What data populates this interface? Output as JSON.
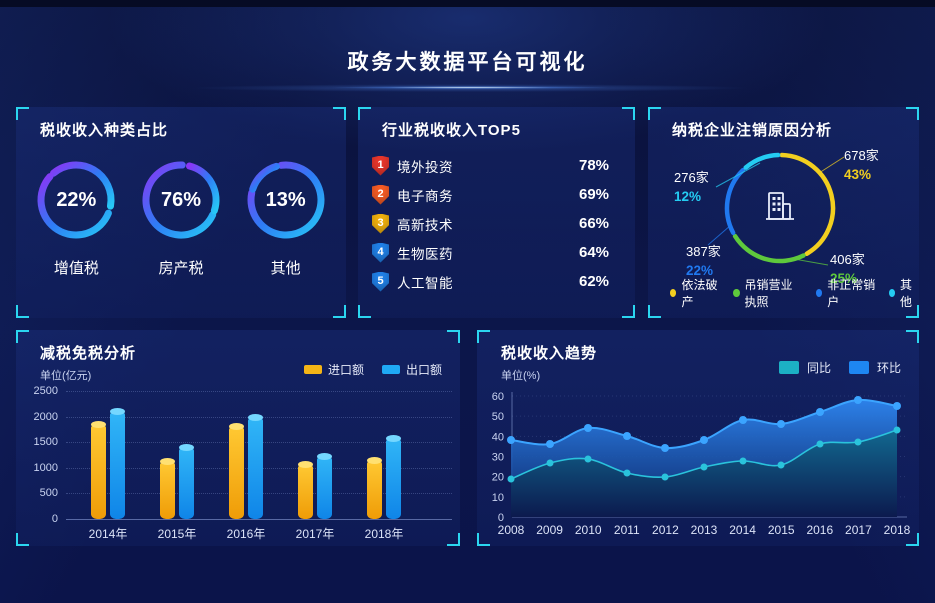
{
  "header": {
    "title": "政务大数据平台可视化"
  },
  "colors": {
    "background": "#0b1340",
    "panel": "#11205c",
    "corner_accent": "#2bd6f0",
    "axis_text": "#c9d3f0"
  },
  "chart_data": [
    {
      "id": "tax_type_rings",
      "type": "pie",
      "title": "税收收入种类占比",
      "ring_colors": [
        "#8a36f5",
        "#2f7bf5",
        "#27c8f6"
      ],
      "items": [
        {
          "label": "增值税",
          "pct": "22%",
          "value": 22
        },
        {
          "label": "房产税",
          "pct": "76%",
          "value": 76
        },
        {
          "label": "其他",
          "pct": "13%",
          "value": 13
        }
      ]
    },
    {
      "id": "industry_top5",
      "type": "bar",
      "title": "行业税收收入TOP5",
      "bar_color_start": "#2b50d8",
      "bar_color_end": "#4f9cf7",
      "max_value": 78,
      "items": [
        {
          "rank": "1",
          "label": "境外投资",
          "pct": "78%",
          "value": 78,
          "badge_color": "#e8362c"
        },
        {
          "rank": "2",
          "label": "电子商务",
          "pct": "69%",
          "value": 69,
          "badge_color": "#f55b25"
        },
        {
          "rank": "3",
          "label": "高新技术",
          "pct": "66%",
          "value": 66,
          "badge_color": "#f0b10e"
        },
        {
          "rank": "4",
          "label": "生物医药",
          "pct": "64%",
          "value": 64,
          "badge_color": "#2080e8"
        },
        {
          "rank": "5",
          "label": "人工智能",
          "pct": "62%",
          "value": 62,
          "badge_color": "#2080e8"
        }
      ]
    },
    {
      "id": "cancel_reason",
      "type": "pie",
      "title": "纳税企业注销原因分析",
      "segments": [
        {
          "label": "依法破产",
          "count": "678家",
          "pct": "43%",
          "value": 43,
          "color": "#f2cf1f"
        },
        {
          "label": "吊销营业执照",
          "count": "406家",
          "pct": "25%",
          "value": 25,
          "color": "#5ec93c"
        },
        {
          "label": "非正常销户",
          "count": "387家",
          "pct": "22%",
          "value": 22,
          "color": "#2079f0"
        },
        {
          "label": "其他",
          "count": "276家",
          "pct": "12%",
          "value": 12,
          "color": "#24ccf2"
        }
      ]
    },
    {
      "id": "tax_reduction",
      "type": "bar",
      "title": "减税免税分析",
      "unit_label": "单位(亿元)",
      "categories": [
        "2014年",
        "2015年",
        "2016年",
        "2017年",
        "2018年"
      ],
      "series": [
        {
          "name": "进口额",
          "color": "#f5b516",
          "values": [
            1850,
            1130,
            1820,
            1080,
            1150
          ]
        },
        {
          "name": "出口额",
          "color": "#1fa9f4",
          "values": [
            2100,
            1400,
            2000,
            1230,
            1580
          ]
        }
      ],
      "ylim": [
        0,
        2500
      ],
      "yticks": [
        0,
        500,
        1000,
        1500,
        2000,
        2500
      ],
      "grid": "dotted",
      "legend_position": "top-right"
    },
    {
      "id": "tax_trend",
      "type": "area",
      "title": "税收收入趋势",
      "unit_label": "单位(%)",
      "x": [
        2008,
        2009,
        2010,
        2011,
        2012,
        2013,
        2014,
        2015,
        2016,
        2017,
        2018
      ],
      "series": [
        {
          "name": "同比",
          "color": "#1cb0c4",
          "line_color": "#2ac3dc",
          "values": [
            19,
            27,
            29,
            22,
            20,
            25,
            28,
            26,
            36,
            37,
            43
          ]
        },
        {
          "name": "环比",
          "color": "#1e86f2",
          "line_color": "#3ba4ff",
          "values": [
            38,
            36,
            44,
            40,
            34,
            38,
            48,
            46,
            52,
            58,
            55
          ]
        }
      ],
      "ylim": [
        0,
        60
      ],
      "yticks": [
        0,
        10,
        20,
        30,
        40,
        50,
        60
      ],
      "legend_position": "top-right"
    }
  ]
}
